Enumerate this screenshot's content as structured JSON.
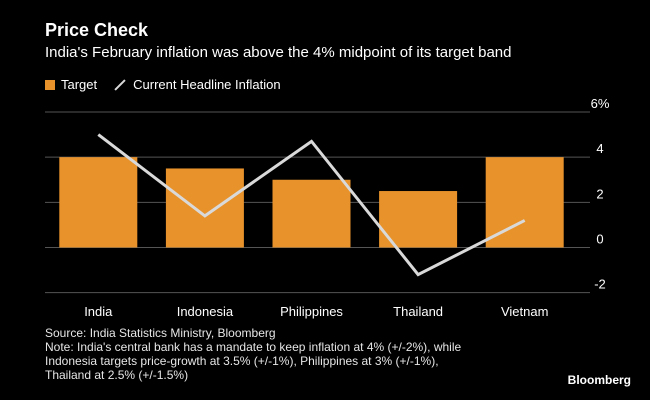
{
  "header": {
    "title": "Price Check",
    "subtitle": "India's February inflation was above the 4% midpoint of its target band"
  },
  "legend": {
    "target_label": "Target",
    "headline_label": "Current Headline Inflation"
  },
  "colors": {
    "bar": "#e8922b",
    "line": "#d9d9d9",
    "background": "#000000",
    "gridline": "#555555"
  },
  "chart_data": {
    "type": "bar",
    "title": "Price Check",
    "subtitle": "India's February inflation was above the 4% midpoint of its target band",
    "categories": [
      "India",
      "Indonesia",
      "Philippines",
      "Thailand",
      "Vietnam"
    ],
    "series": [
      {
        "name": "Target",
        "type": "bar",
        "values": [
          4,
          3.5,
          3,
          2.5,
          4
        ]
      },
      {
        "name": "Current Headline Inflation",
        "type": "line",
        "values": [
          5.0,
          1.4,
          4.7,
          -1.2,
          1.2
        ]
      }
    ],
    "y_ticks": [
      "6%",
      "4",
      "2",
      "0",
      "-2"
    ],
    "y_tick_values": [
      6,
      4,
      2,
      0,
      -2
    ],
    "ylim": [
      -2,
      6
    ],
    "xlabel": "",
    "ylabel": ""
  },
  "footer": {
    "source": "Source: India Statistics Ministry, Bloomberg",
    "note_line1": "Note: India's central bank has a mandate to keep inflation at 4% (+/-2%), while",
    "note_line2": "Indonesia targets price-growth at 3.5% (+/-1%), Philippines at 3% (+/-1%),",
    "note_line3": "Thailand at 2.5% (+/-1.5%)"
  },
  "brand": "Bloomberg"
}
